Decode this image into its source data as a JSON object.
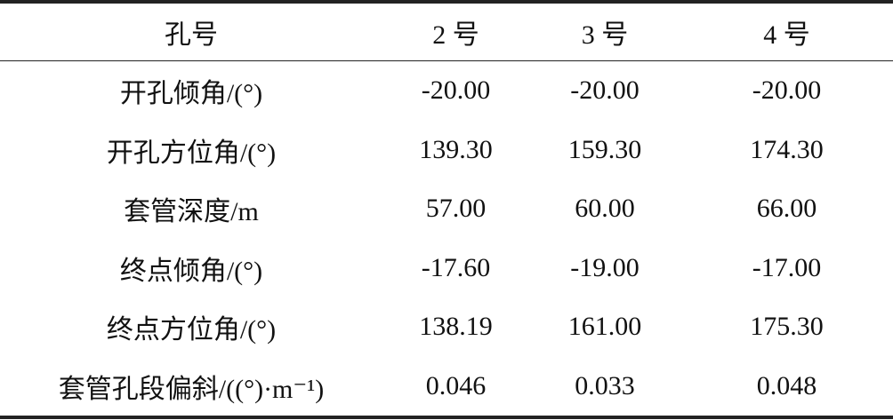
{
  "table": {
    "header": [
      "孔号",
      "2 号",
      "3 号",
      "4 号"
    ],
    "rows": [
      [
        "开孔倾角/(°)",
        "-20.00",
        "-20.00",
        "-20.00"
      ],
      [
        "开孔方位角/(°)",
        "139.30",
        "159.30",
        "174.30"
      ],
      [
        "套管深度/m",
        "57.00",
        "60.00",
        "66.00"
      ],
      [
        "终点倾角/(°)",
        "-17.60",
        "-19.00",
        "-17.00"
      ],
      [
        "终点方位角/(°)",
        "138.19",
        "161.00",
        "175.30"
      ],
      [
        "套管孔段偏斜/((°)·m⁻¹)",
        "0.046",
        "0.033",
        "0.048"
      ]
    ]
  }
}
